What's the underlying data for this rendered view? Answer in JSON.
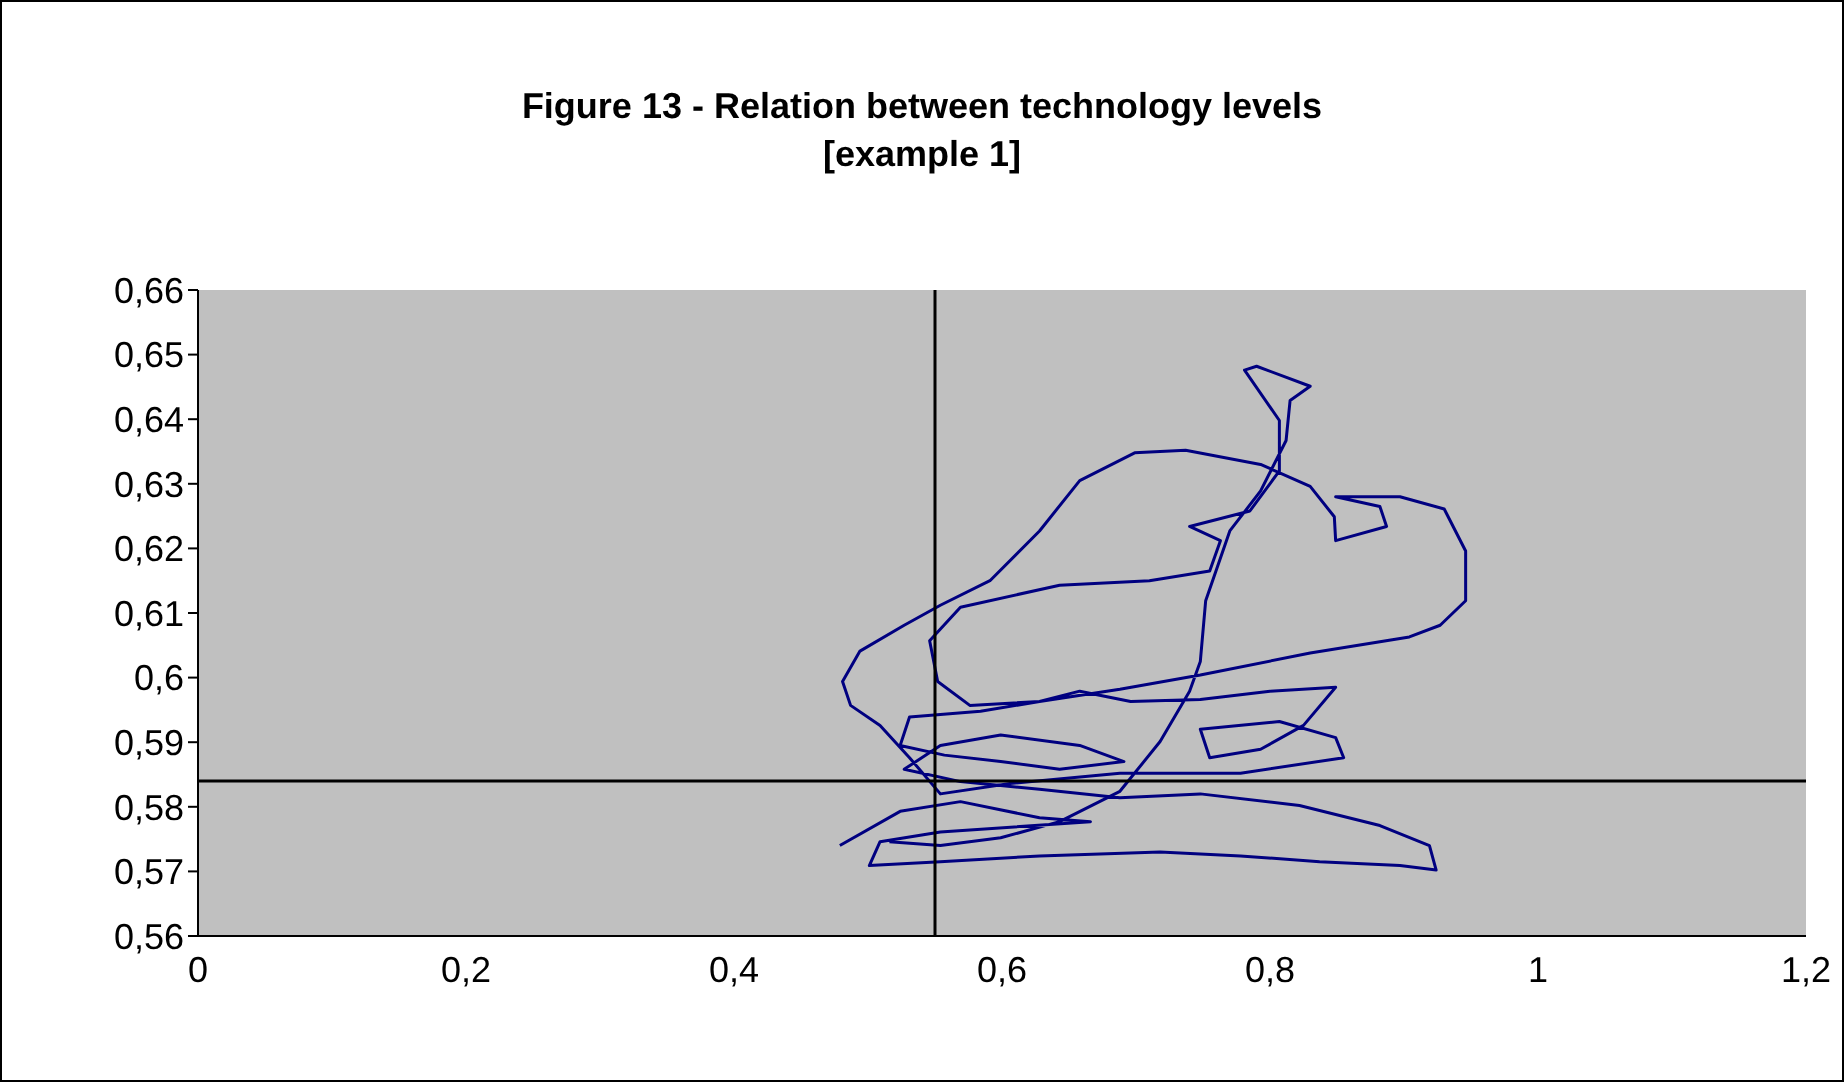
{
  "chart_data": {
    "type": "line",
    "title": "Figure 13 - Relation between technology levels [example 1]",
    "color": "#000080",
    "marker": "none",
    "legend": false,
    "x": [
      0.479,
      0.524,
      0.569,
      0.628,
      0.666,
      0.554,
      0.509,
      0.501,
      0.554,
      0.628,
      0.718,
      0.778,
      0.837,
      0.897,
      0.924,
      0.919,
      0.882,
      0.822,
      0.748,
      0.688,
      0.628,
      0.569,
      0.527,
      0.554,
      0.599,
      0.658,
      0.691,
      0.643,
      0.599,
      0.557,
      0.524,
      0.531,
      0.584,
      0.628,
      0.658,
      0.696,
      0.748,
      0.8,
      0.849,
      0.825,
      0.793,
      0.755,
      0.748,
      0.807,
      0.849,
      0.855,
      0.778,
      0.688,
      0.606,
      0.554,
      0.531,
      0.509,
      0.487,
      0.481,
      0.494,
      0.527,
      0.554,
      0.591,
      0.628,
      0.658,
      0.699,
      0.737,
      0.793,
      0.83,
      0.848,
      0.849,
      0.887,
      0.882,
      0.849,
      0.897,
      0.93,
      0.946,
      0.946,
      0.927,
      0.904,
      0.83,
      0.748,
      0.688,
      0.628,
      0.576,
      0.552,
      0.546,
      0.569,
      0.643,
      0.71,
      0.755,
      0.763,
      0.74,
      0.785,
      0.807,
      0.807,
      0.781,
      0.79,
      0.83,
      0.815,
      0.812,
      0.793,
      0.77,
      0.752,
      0.748,
      0.74,
      0.718,
      0.688,
      0.643,
      0.599,
      0.554,
      0.516
    ],
    "values": [
      0.574,
      0.5793,
      0.5808,
      0.5783,
      0.5777,
      0.5761,
      0.5746,
      0.5709,
      0.5715,
      0.5724,
      0.573,
      0.5724,
      0.5715,
      0.5709,
      0.5702,
      0.574,
      0.5771,
      0.5802,
      0.582,
      0.5814,
      0.5827,
      0.5839,
      0.5858,
      0.5895,
      0.5911,
      0.5895,
      0.587,
      0.5858,
      0.587,
      0.588,
      0.5895,
      0.5939,
      0.5948,
      0.5963,
      0.5979,
      0.5963,
      0.5966,
      0.5979,
      0.5985,
      0.5926,
      0.5889,
      0.5876,
      0.592,
      0.5932,
      0.5907,
      0.5876,
      0.5852,
      0.5852,
      0.5836,
      0.582,
      0.5876,
      0.5926,
      0.5957,
      0.5994,
      0.6041,
      0.6081,
      0.6112,
      0.615,
      0.6227,
      0.6305,
      0.6348,
      0.6352,
      0.633,
      0.6296,
      0.6249,
      0.6212,
      0.6234,
      0.6265,
      0.628,
      0.628,
      0.6261,
      0.6196,
      0.6119,
      0.6081,
      0.6063,
      0.6038,
      0.6004,
      0.5982,
      0.5963,
      0.5957,
      0.5994,
      0.6057,
      0.6109,
      0.6143,
      0.615,
      0.6165,
      0.6212,
      0.6234,
      0.6258,
      0.632,
      0.6398,
      0.6476,
      0.6482,
      0.6451,
      0.6429,
      0.6367,
      0.6289,
      0.6227,
      0.6119,
      0.6025,
      0.5979,
      0.5901,
      0.5824,
      0.5777,
      0.5752,
      0.574,
      0.5746
    ],
    "xlim": [
      0,
      1.2
    ],
    "ylim": [
      0.56,
      0.66
    ],
    "xticks": [
      0,
      {
        "value": 0.2,
        "label": "0,2"
      },
      {
        "value": 0.4,
        "label": "0,4"
      },
      {
        "value": 0.6,
        "label": "0,6"
      },
      {
        "value": 0.8,
        "label": "0,8"
      },
      1,
      {
        "value": 1.2,
        "label": "1,2"
      }
    ],
    "yticks": [
      {
        "value": 0.56,
        "label": "0,56"
      },
      {
        "value": 0.57,
        "label": "0,57"
      },
      {
        "value": 0.58,
        "label": "0,58"
      },
      {
        "value": 0.59,
        "label": "0,59"
      },
      {
        "value": 0.6,
        "label": "0,6"
      },
      {
        "value": 0.61,
        "label": "0,61"
      },
      {
        "value": 0.62,
        "label": "0,62"
      },
      {
        "value": 0.63,
        "label": "0,63"
      },
      {
        "value": 0.64,
        "label": "0,64"
      },
      {
        "value": 0.65,
        "label": "0,65"
      },
      {
        "value": 0.66,
        "label": "0,66"
      }
    ],
    "ref_lines": [
      {
        "axis": "x",
        "value": 0.55,
        "color": "#000000"
      },
      {
        "axis": "y",
        "value": 0.584,
        "color": "#000000"
      }
    ]
  }
}
